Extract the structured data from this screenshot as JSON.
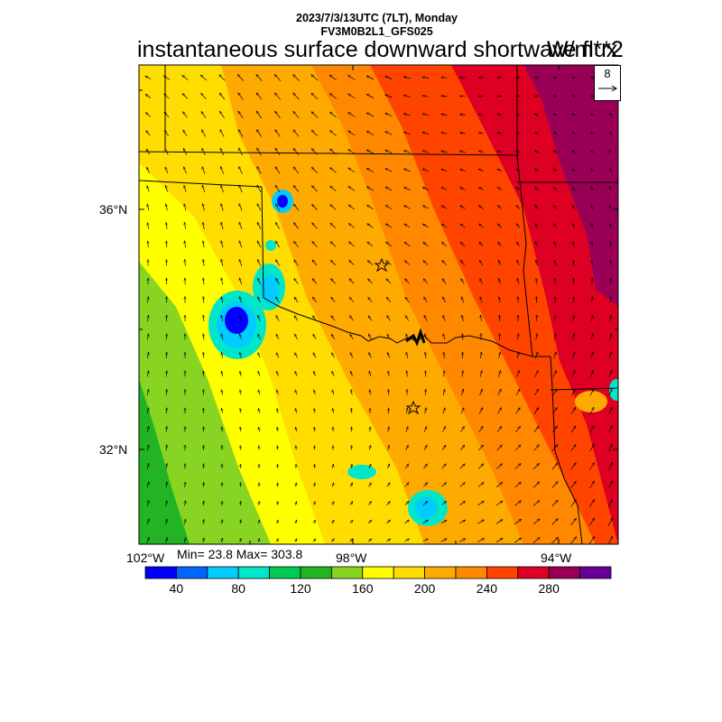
{
  "header": {
    "line1": "2023/7/3/13UTC (7LT), Monday",
    "line2": "FV3M0B2L1_GFS025",
    "title": "instantaneous surface downward shortwave flux",
    "units": "W/m**2",
    "ref_vector_label": "8"
  },
  "axes": {
    "y_ticks": [
      "36°N",
      "32°N"
    ],
    "x_ticks": [
      "102°W",
      "98°W",
      "94°W"
    ]
  },
  "stats": {
    "text": "Min= 23.8 Max= 303.8",
    "min": 23.8,
    "max": 303.8
  },
  "colorbar": {
    "labels": [
      "40",
      "80",
      "120",
      "160",
      "200",
      "240",
      "280"
    ],
    "colors": [
      "#0000ff",
      "#0066ff",
      "#00ccff",
      "#00e6c8",
      "#00cc55",
      "#22b422",
      "#88d422",
      "#ffff00",
      "#ffdd00",
      "#ffaa00",
      "#ff8800",
      "#ff4400",
      "#dd0022",
      "#990055",
      "#660099"
    ]
  },
  "map": {
    "colors": {
      "c_green": "#22b422",
      "c_lime": "#88d422",
      "c_yellow": "#ffff00",
      "c_gold": "#ffdd00",
      "c_amber": "#ffaa00",
      "c_orange": "#ff8800",
      "c_red": "#ff4400",
      "c_crimson": "#dd0022",
      "c_maroon": "#990055",
      "c_cyan": "#00ccff",
      "c_blue": "#0000ff",
      "c_teal": "#00e6c8"
    }
  }
}
